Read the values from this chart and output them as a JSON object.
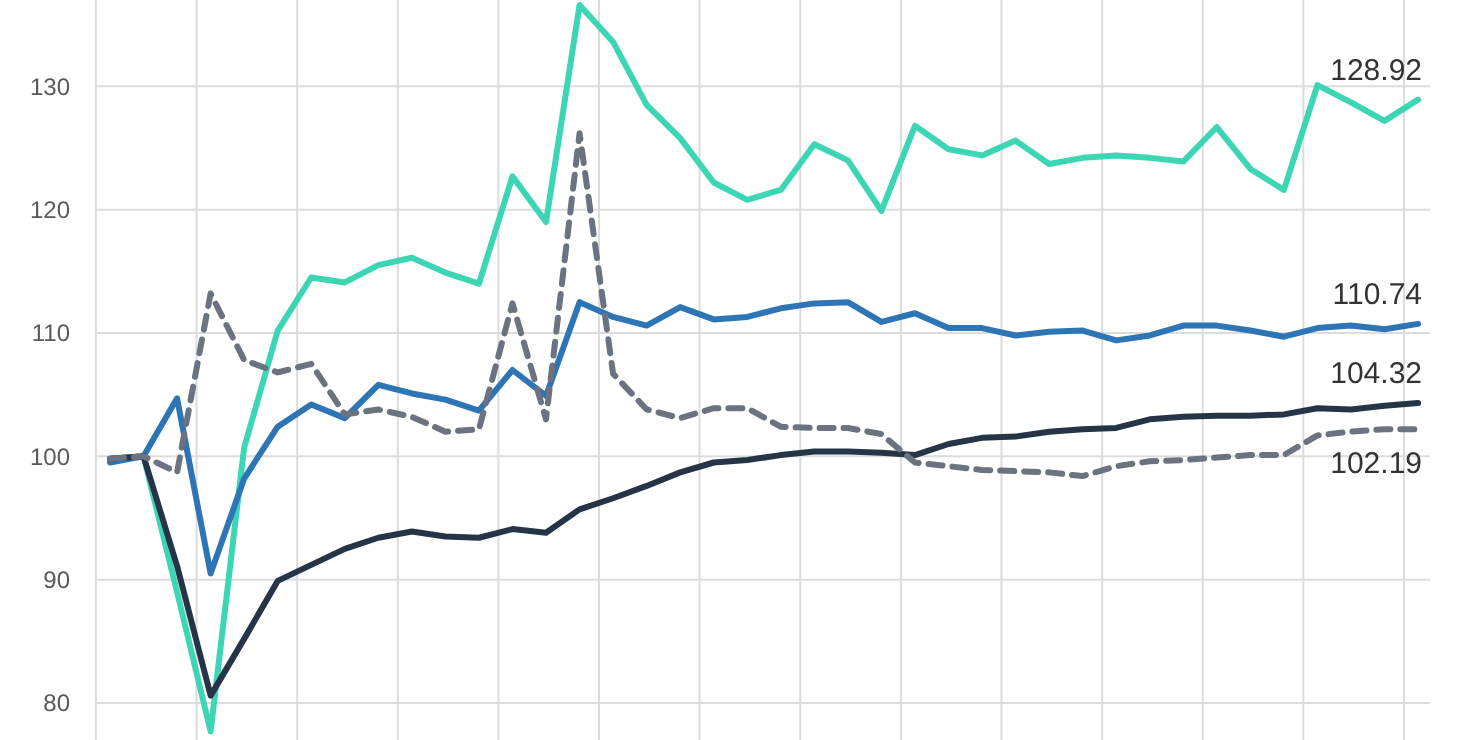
{
  "chart_data": {
    "type": "line",
    "categories": [
      null,
      null,
      null,
      null,
      null,
      null,
      null,
      null,
      null,
      null,
      null,
      null,
      null,
      null,
      null,
      null,
      null,
      null,
      null,
      null,
      null,
      null,
      null,
      null,
      null,
      null,
      null,
      null,
      null,
      null,
      null,
      null,
      null,
      null,
      null,
      null,
      null,
      null,
      null,
      null
    ],
    "ylim": [
      77,
      137
    ],
    "yticks": [
      80,
      90,
      100,
      110,
      120,
      130
    ],
    "grid": true,
    "tick_labels": "y",
    "marker": "none",
    "series": [
      {
        "color": "#3dd6b5",
        "line_style": "solid",
        "values": [
          99.8,
          100,
          89,
          77.7,
          100.7,
          110.2,
          114.5,
          114.1,
          115.5,
          116.1,
          114.9,
          114.0,
          122.7,
          119.0,
          136.6,
          133.6,
          128.5,
          125.8,
          122.2,
          120.8,
          121.6,
          125.3,
          124.0,
          119.9,
          126.8,
          124.9,
          124.4,
          125.6,
          123.7,
          124.2,
          124.4,
          124.2,
          123.9,
          126.7,
          123.3,
          121.6,
          130.1,
          128.7,
          127.2,
          128.92
        ],
        "value_labels": [
          null,
          null,
          null,
          null,
          null,
          null,
          null,
          null,
          null,
          null,
          null,
          null,
          null,
          null,
          null,
          null,
          null,
          null,
          null,
          null,
          null,
          null,
          null,
          null,
          null,
          null,
          null,
          null,
          null,
          null,
          null,
          null,
          null,
          null,
          null,
          null,
          null,
          null,
          null,
          "128.92"
        ]
      },
      {
        "color": "#2e75b6",
        "line_style": "solid",
        "values": [
          99.5,
          100,
          104.7,
          90.5,
          98.2,
          102.4,
          104.2,
          103.1,
          105.8,
          105.1,
          104.6,
          103.7,
          107.0,
          104.9,
          112.5,
          111.3,
          110.6,
          112.1,
          111.1,
          111.3,
          112.0,
          112.4,
          112.5,
          110.9,
          111.6,
          110.4,
          110.4,
          109.8,
          110.1,
          110.2,
          109.4,
          109.8,
          110.6,
          110.6,
          110.2,
          109.7,
          110.4,
          110.6,
          110.3,
          110.74
        ],
        "value_labels": [
          null,
          null,
          null,
          null,
          null,
          null,
          null,
          null,
          null,
          null,
          null,
          null,
          null,
          null,
          null,
          null,
          null,
          null,
          null,
          null,
          null,
          null,
          null,
          null,
          null,
          null,
          null,
          null,
          null,
          null,
          null,
          null,
          null,
          null,
          null,
          null,
          null,
          null,
          null,
          "110.74"
        ]
      },
      {
        "color": "#253547",
        "line_style": "solid",
        "values": [
          99.8,
          100,
          91.1,
          80.6,
          85.2,
          89.9,
          91.2,
          92.5,
          93.4,
          93.9,
          93.5,
          93.4,
          94.1,
          93.8,
          95.7,
          96.6,
          97.6,
          98.7,
          99.5,
          99.7,
          100.1,
          100.4,
          100.4,
          100.3,
          100.1,
          101.0,
          101.5,
          101.6,
          102.0,
          102.2,
          102.3,
          103.0,
          103.2,
          103.3,
          103.3,
          103.4,
          103.9,
          103.8,
          104.1,
          104.32
        ],
        "value_labels": [
          null,
          null,
          null,
          null,
          null,
          null,
          null,
          null,
          null,
          null,
          null,
          null,
          null,
          null,
          null,
          null,
          null,
          null,
          null,
          null,
          null,
          null,
          null,
          null,
          null,
          null,
          null,
          null,
          null,
          null,
          null,
          null,
          null,
          null,
          null,
          null,
          null,
          null,
          null,
          "104.32"
        ]
      },
      {
        "color": "#6b7280",
        "line_style": "dashed",
        "values": [
          99.8,
          100,
          98.7,
          113.2,
          107.8,
          106.8,
          107.5,
          103.4,
          103.8,
          103.2,
          102.0,
          102.2,
          112.4,
          103.0,
          126.2,
          106.7,
          103.8,
          103.1,
          103.9,
          103.9,
          102.4,
          102.3,
          102.3,
          101.8,
          99.5,
          99.2,
          98.9,
          98.8,
          98.7,
          98.4,
          99.2,
          99.6,
          99.7,
          99.9,
          100.1,
          100.1,
          101.7,
          102.0,
          102.2,
          102.19
        ],
        "value_labels": [
          null,
          null,
          null,
          null,
          null,
          null,
          null,
          null,
          null,
          null,
          null,
          null,
          null,
          null,
          null,
          null,
          null,
          null,
          null,
          null,
          null,
          null,
          null,
          null,
          null,
          null,
          null,
          null,
          null,
          null,
          null,
          null,
          null,
          null,
          null,
          null,
          null,
          null,
          null,
          "102.19"
        ]
      }
    ]
  }
}
